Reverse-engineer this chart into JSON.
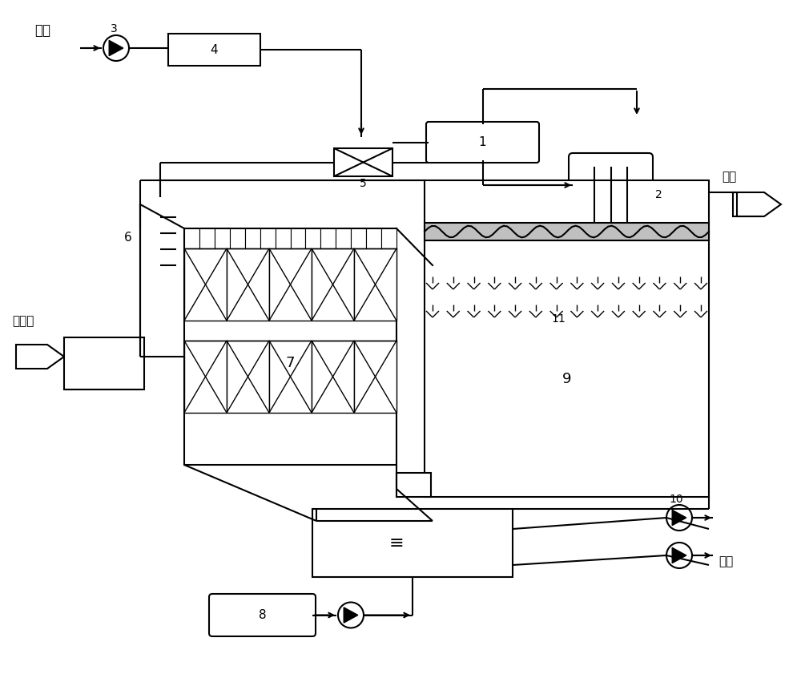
{
  "bg_color": "#ffffff",
  "lc": "#000000",
  "lw": 1.5,
  "labels": {
    "kongqi": "空气",
    "3": "3",
    "4": "4",
    "5": "5",
    "6": "6",
    "7": "7",
    "8": "8",
    "9": "9",
    "10": "10",
    "11": "11",
    "1": "1",
    "2": "2",
    "chuchengqi": "除尘器",
    "yantong": "烟囱",
    "feiliao": "肥料"
  }
}
